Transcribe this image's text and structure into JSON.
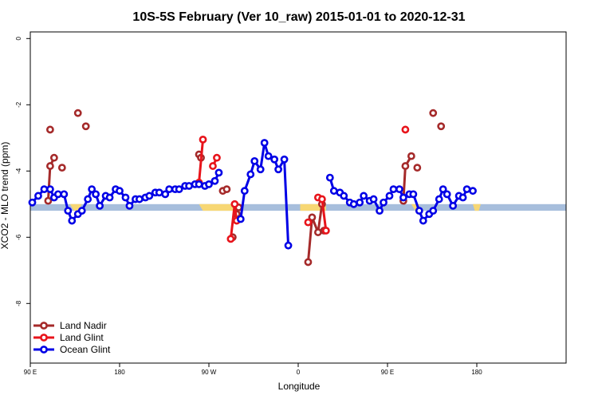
{
  "chart_data": {
    "type": "line",
    "title": "10S-5S February (Ver 10_raw)   2015-01-01 to 2020-12-31",
    "xlabel": "Longitude",
    "ylabel": "XCO2 - MLO trend (ppm)",
    "xlim": [
      -90,
      180
    ],
    "ylim": [
      -9.8,
      0.2
    ],
    "x_ticks": [
      {
        "value": -90,
        "label": "90 E"
      },
      {
        "value": -45,
        "label": "180"
      },
      {
        "value": 0,
        "label": "90 W"
      },
      {
        "value": 45,
        "label": "0"
      },
      {
        "value": 90,
        "label": "90 E"
      },
      {
        "value": 135,
        "label": "180"
      }
    ],
    "y_ticks": [
      0,
      -2,
      -4,
      -6,
      -8
    ],
    "legend_position": "bottom-left",
    "background_band": {
      "y_range": [
        -5.2,
        -5.0
      ],
      "ocean_color": "#a7bedc",
      "land_color": "#f7d774"
    },
    "series": [
      {
        "name": "Land Nadir",
        "color": "#a52a2a",
        "segments": [
          [
            [
              -81,
              -4.9
            ],
            [
              -80,
              -3.85
            ],
            [
              -78,
              -3.6
            ]
          ],
          [
            [
              -74,
              -3.9
            ]
          ],
          [
            [
              -80,
              -2.75
            ]
          ],
          [
            [
              -66,
              -2.25
            ]
          ],
          [
            [
              -62,
              -2.65
            ]
          ],
          [
            [
              -5,
              -3.5
            ],
            [
              -4,
              -3.6
            ]
          ],
          [
            [
              7,
              -4.6
            ],
            [
              9,
              -4.55
            ]
          ],
          [
            [
              12,
              -6.0
            ]
          ],
          [
            [
              14,
              -5.3
            ],
            [
              15,
              -5.1
            ]
          ],
          [
            [
              50,
              -6.75
            ],
            [
              52,
              -5.4
            ],
            [
              55,
              -5.85
            ],
            [
              57,
              -5.0
            ]
          ],
          [
            [
              58,
              -5.8
            ]
          ],
          [
            [
              98,
              -4.9
            ],
            [
              99,
              -3.85
            ],
            [
              102,
              -3.55
            ]
          ],
          [
            [
              105,
              -3.9
            ]
          ],
          [
            [
              113,
              -2.25
            ]
          ],
          [
            [
              117,
              -2.65
            ]
          ]
        ]
      },
      {
        "name": "Land Glint",
        "color": "#e8141b",
        "segments": [
          [
            [
              -5,
              -4.35
            ],
            [
              -3,
              -3.05
            ]
          ],
          [
            [
              2,
              -3.85
            ],
            [
              4,
              -3.6
            ]
          ],
          [
            [
              11,
              -6.05
            ],
            [
              13,
              -5.0
            ],
            [
              14,
              -5.5
            ]
          ],
          [
            [
              50,
              -5.55
            ]
          ],
          [
            [
              55,
              -4.8
            ],
            [
              57,
              -4.85
            ],
            [
              59,
              -5.8
            ]
          ],
          [
            [
              99,
              -2.75
            ]
          ]
        ]
      },
      {
        "name": "Ocean Glint",
        "color": "#0000e6",
        "segments": [
          [
            [
              -89,
              -4.95
            ],
            [
              -86,
              -4.75
            ],
            [
              -83,
              -4.55
            ],
            [
              -80,
              -4.55
            ],
            [
              -78,
              -4.8
            ],
            [
              -76,
              -4.7
            ],
            [
              -73,
              -4.7
            ],
            [
              -71,
              -5.2
            ],
            [
              -69,
              -5.5
            ],
            [
              -66,
              -5.3
            ],
            [
              -64,
              -5.2
            ],
            [
              -61,
              -4.85
            ],
            [
              -59,
              -4.55
            ],
            [
              -57,
              -4.7
            ],
            [
              -55,
              -5.05
            ],
            [
              -52,
              -4.75
            ],
            [
              -50,
              -4.8
            ],
            [
              -47,
              -4.55
            ],
            [
              -45,
              -4.6
            ],
            [
              -42,
              -4.8
            ],
            [
              -40,
              -5.05
            ],
            [
              -37,
              -4.85
            ],
            [
              -35,
              -4.85
            ],
            [
              -32,
              -4.8
            ],
            [
              -30,
              -4.75
            ],
            [
              -27,
              -4.65
            ],
            [
              -25,
              -4.65
            ],
            [
              -22,
              -4.7
            ],
            [
              -20,
              -4.55
            ],
            [
              -17,
              -4.55
            ],
            [
              -15,
              -4.55
            ],
            [
              -12,
              -4.45
            ],
            [
              -10,
              -4.45
            ],
            [
              -7,
              -4.4
            ],
            [
              -5,
              -4.4
            ],
            [
              -2,
              -4.45
            ],
            [
              0,
              -4.4
            ],
            [
              3,
              -4.3
            ],
            [
              5,
              -4.05
            ]
          ],
          [
            [
              16,
              -5.45
            ],
            [
              18,
              -4.6
            ],
            [
              21,
              -4.1
            ],
            [
              23,
              -3.7
            ],
            [
              26,
              -3.95
            ],
            [
              28,
              -3.15
            ],
            [
              30,
              -3.55
            ],
            [
              33,
              -3.65
            ],
            [
              35,
              -3.95
            ],
            [
              38,
              -3.65
            ],
            [
              40,
              -6.25
            ]
          ],
          [
            [
              61,
              -4.2
            ],
            [
              63,
              -4.6
            ],
            [
              66,
              -4.65
            ],
            [
              68,
              -4.75
            ],
            [
              71,
              -4.95
            ],
            [
              73,
              -5.0
            ],
            [
              76,
              -4.95
            ],
            [
              78,
              -4.75
            ],
            [
              81,
              -4.9
            ],
            [
              83,
              -4.85
            ],
            [
              86,
              -5.2
            ],
            [
              88,
              -4.95
            ],
            [
              91,
              -4.75
            ],
            [
              93,
              -4.55
            ],
            [
              96,
              -4.55
            ],
            [
              98,
              -4.8
            ],
            [
              101,
              -4.7
            ],
            [
              103,
              -4.7
            ],
            [
              106,
              -5.2
            ],
            [
              108,
              -5.5
            ],
            [
              111,
              -5.3
            ],
            [
              113,
              -5.2
            ],
            [
              116,
              -4.85
            ],
            [
              118,
              -4.55
            ],
            [
              120,
              -4.7
            ],
            [
              123,
              -5.05
            ],
            [
              126,
              -4.75
            ],
            [
              128,
              -4.8
            ],
            [
              130,
              -4.55
            ],
            [
              133,
              -4.6
            ]
          ]
        ]
      }
    ]
  }
}
